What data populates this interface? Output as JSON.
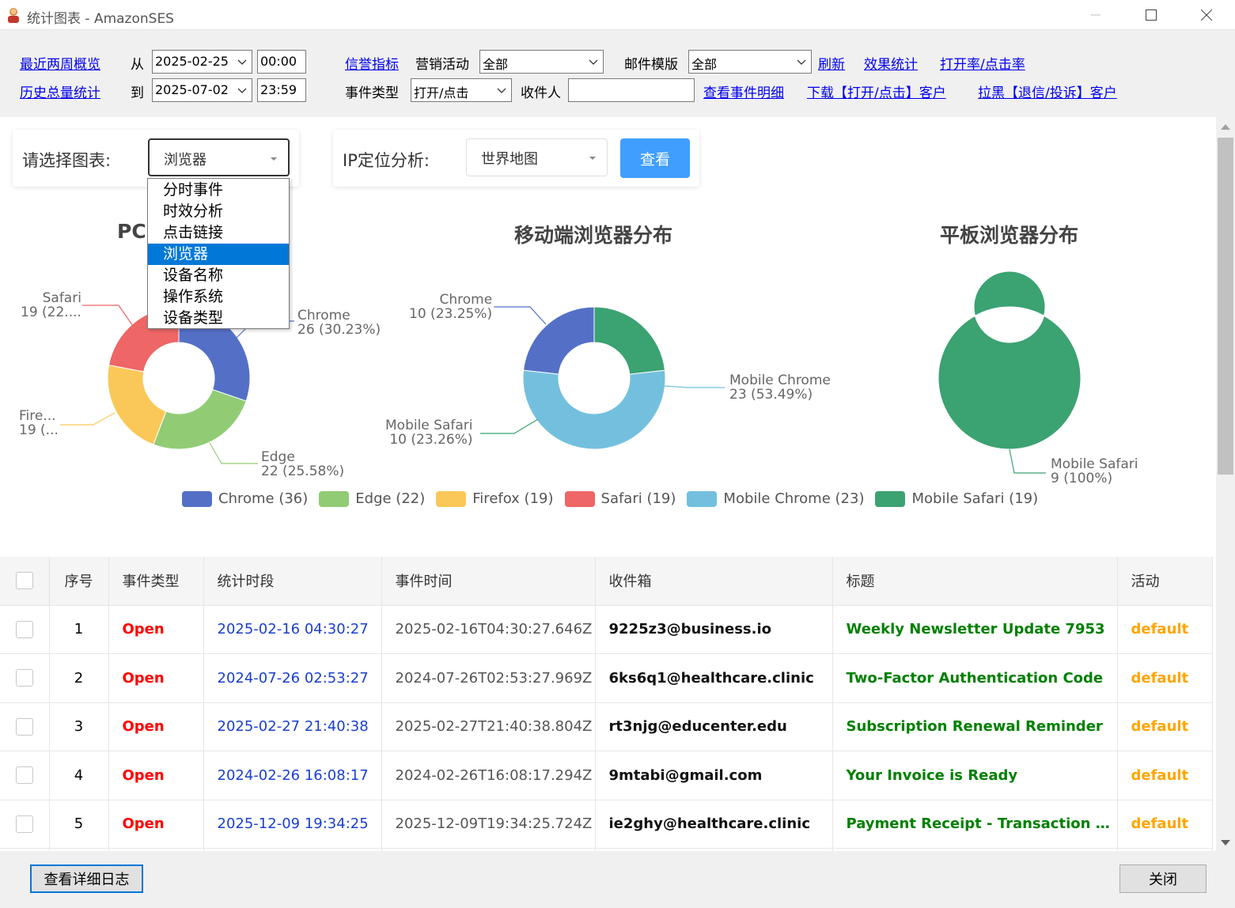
{
  "window": {
    "title": "统计图表 - AmazonSES"
  },
  "toolbar": {
    "link_recent": "最近两周概览",
    "link_history": "历史总量统计",
    "from_label": "从",
    "to_label": "到",
    "from_date": "2025-02-25",
    "from_time": "00:00",
    "to_date": "2025-07-02",
    "to_time": "23:59",
    "link_reputation": "信誉指标",
    "campaign_label": "营销活动",
    "campaign_value": "全部",
    "template_label": "邮件模版",
    "template_value": "全部",
    "link_refresh": "刷新",
    "link_effect": "效果统计",
    "link_rate": "打开率/点击率",
    "event_type_label": "事件类型",
    "event_type_value": "打开/点击",
    "recipient_label": "收件人",
    "recipient_value": "",
    "link_event_detail": "查看事件明细",
    "link_download": "下载【打开/点击】客户",
    "link_blacklist": "拉黑【退信/投诉】客户"
  },
  "selector": {
    "chart_label": "请选择图表:",
    "chart_value": "浏览器",
    "ip_label": "IP定位分析:",
    "ip_value": "世界地图",
    "view_button": "查看",
    "options": [
      "分时事件",
      "时效分析",
      "点击链接",
      "浏览器",
      "设备名称",
      "操作系统",
      "设备类型"
    ],
    "selected_index": 3
  },
  "chart_data": [
    {
      "type": "pie",
      "title": "PC",
      "slices": [
        {
          "name": "Chrome",
          "value": 26,
          "pct": "30.23%",
          "label": "Chrome\n26 (30.23%)"
        },
        {
          "name": "Edge",
          "value": 22,
          "pct": "25.58%",
          "label": "Edge\n22 (25.58%)"
        },
        {
          "name": "Firefox",
          "value": 19,
          "pct": "22.09%",
          "label": "Fire...\n19 (..."
        },
        {
          "name": "Safari",
          "value": 19,
          "pct": "22.09%",
          "label": "Safari\n19 (22...."
        }
      ]
    },
    {
      "type": "pie",
      "title": "移动端浏览器分布",
      "slices": [
        {
          "name": "Chrome",
          "value": 10,
          "pct": "23.25%",
          "label": "Chrome\n10 (23.25%)"
        },
        {
          "name": "Mobile Chrome",
          "value": 23,
          "pct": "53.49%",
          "label": "Mobile Chrome\n23 (53.49%)"
        },
        {
          "name": "Mobile Safari",
          "value": 10,
          "pct": "23.26%",
          "label": "Mobile Safari\n10 (23.26%)"
        }
      ]
    },
    {
      "type": "pie",
      "title": "平板浏览器分布",
      "slices": [
        {
          "name": "Mobile Safari",
          "value": 9,
          "pct": "100%",
          "label": "Mobile Safari\n9 (100%)"
        }
      ]
    }
  ],
  "legend": [
    {
      "label": "Chrome (36)",
      "color": "#5470c6"
    },
    {
      "label": "Edge (22)",
      "color": "#91cc75"
    },
    {
      "label": "Firefox (19)",
      "color": "#fac858"
    },
    {
      "label": "Safari (19)",
      "color": "#ee6666"
    },
    {
      "label": "Mobile Chrome (23)",
      "color": "#73c0de"
    },
    {
      "label": "Mobile Safari (19)",
      "color": "#3ba272"
    }
  ],
  "table": {
    "headers": [
      "",
      "序号",
      "事件类型",
      "统计时段",
      "事件时间",
      "收件箱",
      "标题",
      "活动"
    ],
    "rows": [
      [
        "1",
        "Open",
        "2025-02-16 04:30:27",
        "2025-02-16T04:30:27.646Z",
        "9225z3@business.io",
        "Weekly Newsletter Update 7953",
        "default"
      ],
      [
        "2",
        "Open",
        "2024-07-26 02:53:27",
        "2024-07-26T02:53:27.969Z",
        "6ks6q1@healthcare.clinic",
        "Two-Factor Authentication Code",
        "default"
      ],
      [
        "3",
        "Open",
        "2025-02-27 21:40:38",
        "2025-02-27T21:40:38.804Z",
        "rt3njg@educenter.edu",
        "Subscription Renewal Reminder",
        "default"
      ],
      [
        "4",
        "Open",
        "2024-02-26 16:08:17",
        "2024-02-26T16:08:17.294Z",
        "9mtabi@gmail.com",
        "Your Invoice is Ready",
        "default"
      ],
      [
        "5",
        "Open",
        "2025-12-09 19:34:25",
        "2025-12-09T19:34:25.724Z",
        "ie2ghy@healthcare.clinic",
        "Payment Receipt - Transaction Co...",
        "default"
      ]
    ]
  },
  "bottom": {
    "detail_log_button": "查看详细日志",
    "close_button": "关闭"
  }
}
